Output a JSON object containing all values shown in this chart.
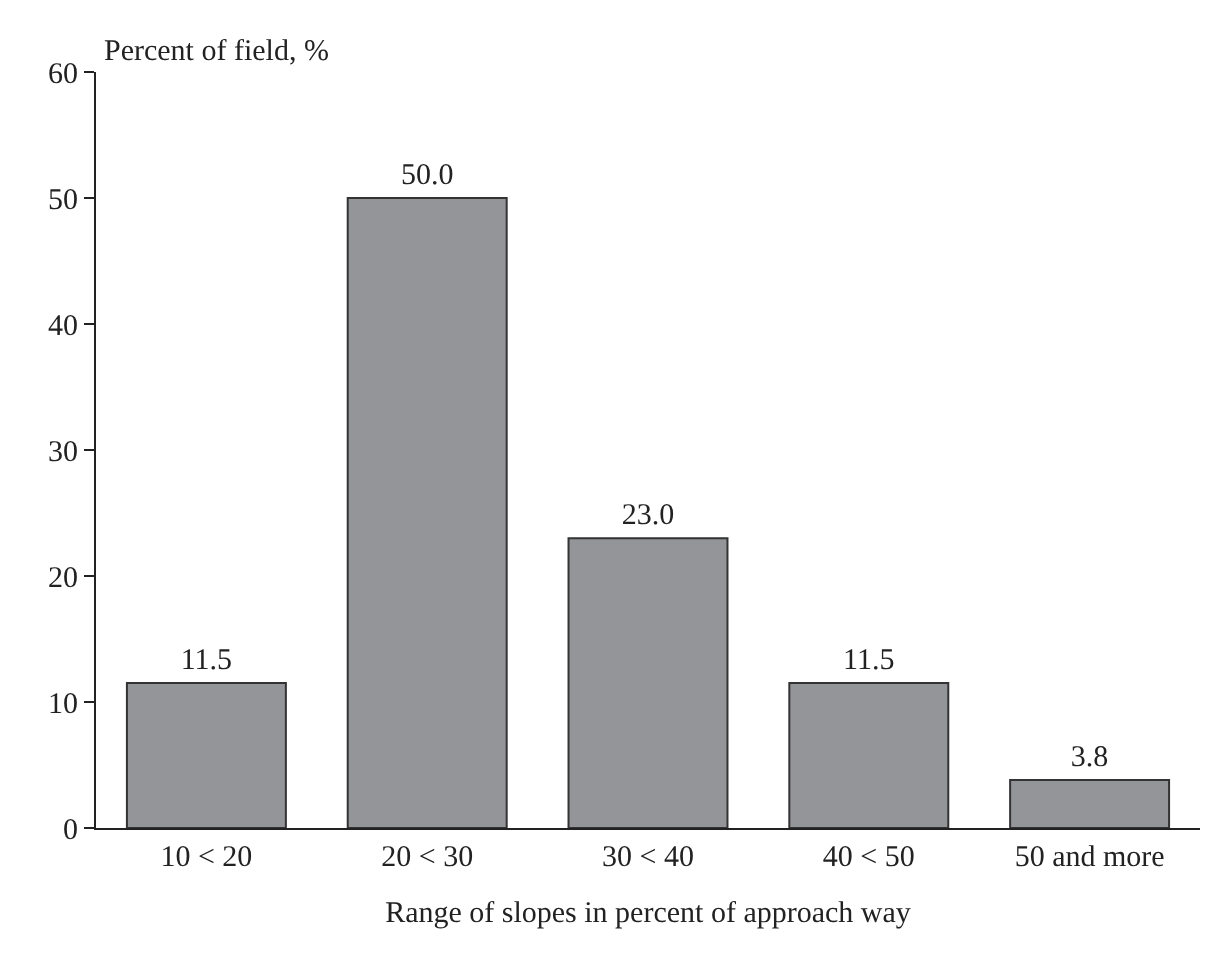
{
  "chart_data": {
    "type": "bar",
    "xlabel": "Range of slopes in percent of approach way",
    "ylabel": "Percent of field, %",
    "categories": [
      "10 < 20",
      "20 < 30",
      "30 < 40",
      "40 < 50",
      "50 and more"
    ],
    "values": [
      11.5,
      50.0,
      23.0,
      11.5,
      3.8
    ],
    "value_labels": [
      "11.5",
      "50.0",
      "23.0",
      "11.5",
      "3.8"
    ],
    "color": "#939598",
    "ylim": [
      0,
      60
    ],
    "yticks": [
      0,
      10,
      20,
      30,
      40,
      50,
      60
    ],
    "legend": false
  }
}
